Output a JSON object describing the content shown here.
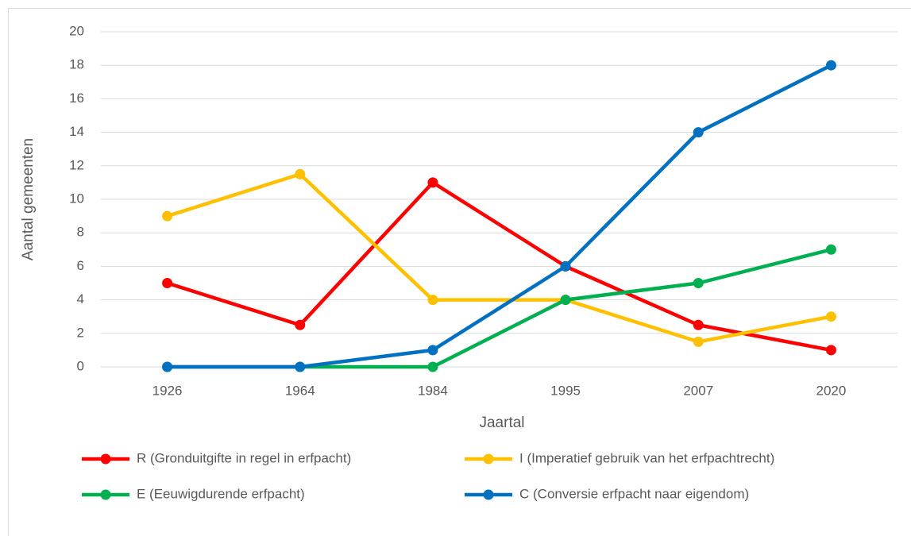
{
  "chart_data": {
    "type": "line",
    "categories": [
      "1926",
      "1964",
      "1984",
      "1995",
      "2007",
      "2020"
    ],
    "series": [
      {
        "name": "R (Gronduitgifte in regel in erfpacht)",
        "color": "#ff0000",
        "values": [
          5,
          2.5,
          11,
          6,
          2.5,
          1
        ]
      },
      {
        "name": "I (Imperatief gebruik van het erfpachtrecht)",
        "color": "#ffc000",
        "values": [
          9,
          11.5,
          4,
          4,
          1.5,
          3
        ]
      },
      {
        "name": "E (Eeuwigdurende erfpacht)",
        "color": "#00b050",
        "values": [
          0,
          0,
          0,
          4,
          5,
          7
        ]
      },
      {
        "name": "C (Conversie erfpacht naar eigendom)",
        "color": "#0070c0",
        "values": [
          0,
          0,
          1,
          6,
          14,
          18
        ]
      }
    ],
    "x_label": "Jaartal",
    "y_label": "Aantal gemeenten",
    "ylim": [
      0,
      20
    ],
    "yticks": [
      0,
      2,
      4,
      6,
      8,
      10,
      12,
      14,
      16,
      18,
      20
    ],
    "grid": true,
    "legend": "bottom"
  }
}
